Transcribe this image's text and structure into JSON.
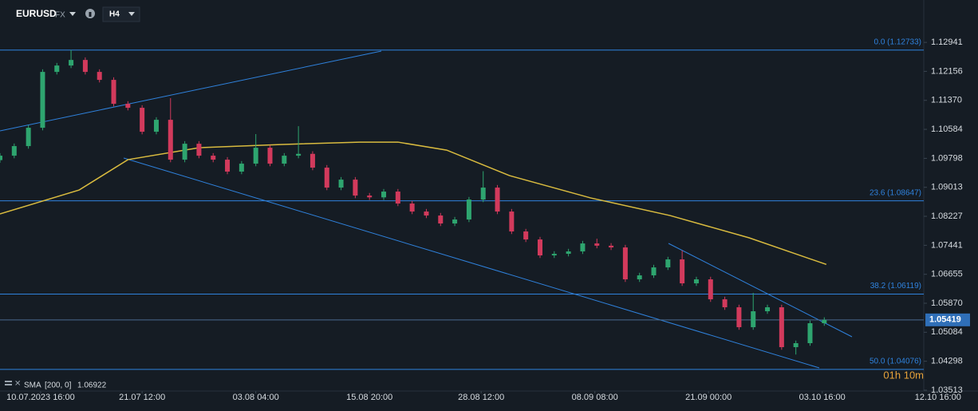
{
  "header": {
    "symbol": "EURUSD",
    "market": "FX",
    "timeframe": "H4"
  },
  "chart_data": {
    "type": "candlestick",
    "x": [
      0,
      7,
      14,
      21,
      28,
      35,
      42,
      49,
      56,
      63,
      70,
      77,
      84,
      91,
      98,
      105,
      112,
      119,
      126,
      133,
      140,
      147,
      154,
      161,
      168,
      175,
      182,
      189,
      196,
      203,
      210,
      217,
      224,
      231,
      238,
      245,
      252,
      259,
      266,
      273,
      280,
      287,
      294,
      301,
      308,
      315,
      322,
      329,
      336,
      343,
      350,
      357,
      364,
      371,
      378,
      385,
      392,
      399,
      406
    ],
    "open": [
      1.0975,
      1.0987,
      1.1013,
      1.10627,
      1.12141,
      1.12314,
      1.12465,
      1.12141,
      1.11925,
      1.11276,
      1.11168,
      1.10519,
      1.10843,
      1.09762,
      1.10194,
      1.0987,
      1.09762,
      1.09438,
      1.09654,
      1.10086,
      1.09654,
      1.0987,
      1.0992,
      1.09546,
      1.09005,
      1.09221,
      1.08789,
      1.0874,
      1.08897,
      1.08573,
      1.08356,
      1.08248,
      1.08032,
      1.0814,
      1.08681,
      1.09005,
      1.08356,
      1.07816,
      1.07599,
      1.07167,
      1.0721,
      1.07275,
      1.07491,
      1.0743,
      1.07383,
      1.06518,
      1.06626,
      1.06842,
      1.07059,
      1.0641,
      1.06518,
      1.05977,
      1.05761,
      1.05221,
      1.05653,
      1.05761,
      1.0468,
      1.04788,
      1.05329
    ],
    "high": [
      1.0994,
      1.102,
      1.10697,
      1.12211,
      1.12384,
      1.12735,
      1.12535,
      1.12211,
      1.11995,
      1.11346,
      1.11238,
      1.10913,
      1.1143,
      1.10264,
      1.10264,
      1.0994,
      1.09832,
      1.09724,
      1.10456,
      1.10156,
      1.0994,
      1.1067,
      1.0999,
      1.09616,
      1.09291,
      1.09291,
      1.08859,
      1.08967,
      1.08967,
      1.08643,
      1.08426,
      1.08318,
      1.0821,
      1.08751,
      1.0945,
      1.09075,
      1.08426,
      1.07886,
      1.07669,
      1.0728,
      1.07345,
      1.07561,
      1.0762,
      1.075,
      1.07453,
      1.06696,
      1.06912,
      1.07129,
      1.073,
      1.06588,
      1.06588,
      1.06047,
      1.05831,
      1.0615,
      1.05831,
      1.05831,
      1.04858,
      1.05399,
      1.05489
    ],
    "low": [
      1.0968,
      1.098,
      1.1006,
      1.10557,
      1.12071,
      1.12244,
      1.12071,
      1.11855,
      1.11206,
      1.11098,
      1.10449,
      1.10449,
      1.09692,
      1.09692,
      1.098,
      1.09692,
      1.09368,
      1.09368,
      1.09584,
      1.09584,
      1.09584,
      1.098,
      1.09476,
      1.08935,
      1.08935,
      1.08719,
      1.0867,
      1.0867,
      1.08503,
      1.08286,
      1.08178,
      1.07962,
      1.07962,
      1.0807,
      1.08611,
      1.08286,
      1.07746,
      1.07529,
      1.07097,
      1.07097,
      1.0714,
      1.07205,
      1.0736,
      1.07313,
      1.06448,
      1.06448,
      1.06556,
      1.06772,
      1.0634,
      1.0634,
      1.05907,
      1.05691,
      1.05151,
      1.05151,
      1.05583,
      1.0461,
      1.0448,
      1.04718,
      1.05259
    ],
    "close": [
      1.0987,
      1.1013,
      1.10627,
      1.12141,
      1.12314,
      1.12465,
      1.12141,
      1.11925,
      1.11276,
      1.11168,
      1.10519,
      1.10843,
      1.09762,
      1.10194,
      1.0987,
      1.09762,
      1.09438,
      1.09654,
      1.10086,
      1.09654,
      1.0987,
      1.0992,
      1.09546,
      1.09005,
      1.09221,
      1.08789,
      1.0874,
      1.08897,
      1.08573,
      1.08356,
      1.08248,
      1.08032,
      1.0814,
      1.08681,
      1.09005,
      1.08356,
      1.07816,
      1.07599,
      1.07167,
      1.0721,
      1.07275,
      1.07491,
      1.0743,
      1.07383,
      1.06518,
      1.06626,
      1.06842,
      1.07059,
      1.0641,
      1.06518,
      1.05977,
      1.05761,
      1.05221,
      1.05653,
      1.05761,
      1.0468,
      1.04788,
      1.05329,
      1.05419
    ],
    "up_color": "#2ea56f",
    "down_color": "#d23a5c",
    "xlim": [
      0,
      455
    ],
    "xticks": [
      {
        "value": 20,
        "label": "10.07.2023 16:00"
      },
      {
        "value": 70,
        "label": "21.07 12:00"
      },
      {
        "value": 126,
        "label": "03.08 04:00"
      },
      {
        "value": 182,
        "label": "15.08 20:00"
      },
      {
        "value": 237,
        "label": "28.08 12:00"
      },
      {
        "value": 293,
        "label": "08.09 08:00"
      },
      {
        "value": 349,
        "label": "21.09 00:00"
      },
      {
        "value": 405,
        "label": "03.10 16:00"
      },
      {
        "value": 462,
        "label": "12.10 16:00"
      }
    ],
    "ylim": [
      1.0349,
      1.1409
    ],
    "yticks": [
      1.12941,
      1.12156,
      {
        "value": 1.1137,
        "label": "1.11370"
      },
      1.10584,
      1.09798,
      1.09013,
      1.08227,
      1.07441,
      1.06655,
      {
        "value": 1.0587,
        "label": "1.05870"
      },
      1.05084,
      1.04298,
      1.03513
    ],
    "indicator": {
      "name": "SMA",
      "params": "[200, 0]",
      "value": 1.06922,
      "color": "#d9bb3f",
      "x": [
        0,
        39,
        63,
        98,
        138,
        177,
        196,
        220,
        251,
        291,
        330,
        369,
        407
      ],
      "values": [
        1.08291,
        1.0894,
        1.09762,
        1.10086,
        1.10173,
        1.10238,
        1.10238,
        1.10021,
        1.09329,
        1.08724,
        1.08248,
        1.07643,
        1.06922
      ]
    },
    "fib_levels": [
      {
        "label": "0.0 (1.12733)",
        "value": 1.12733
      },
      {
        "label": "23.6 (1.08647)",
        "value": 1.08647
      },
      {
        "label": "38.2 (1.06119)",
        "value": 1.06119
      },
      {
        "label": "50.0 (1.04076)",
        "value": 1.04076
      }
    ],
    "fib_color": "#2f82dd",
    "last_price": 1.05419,
    "countdown": "01h 10m"
  }
}
